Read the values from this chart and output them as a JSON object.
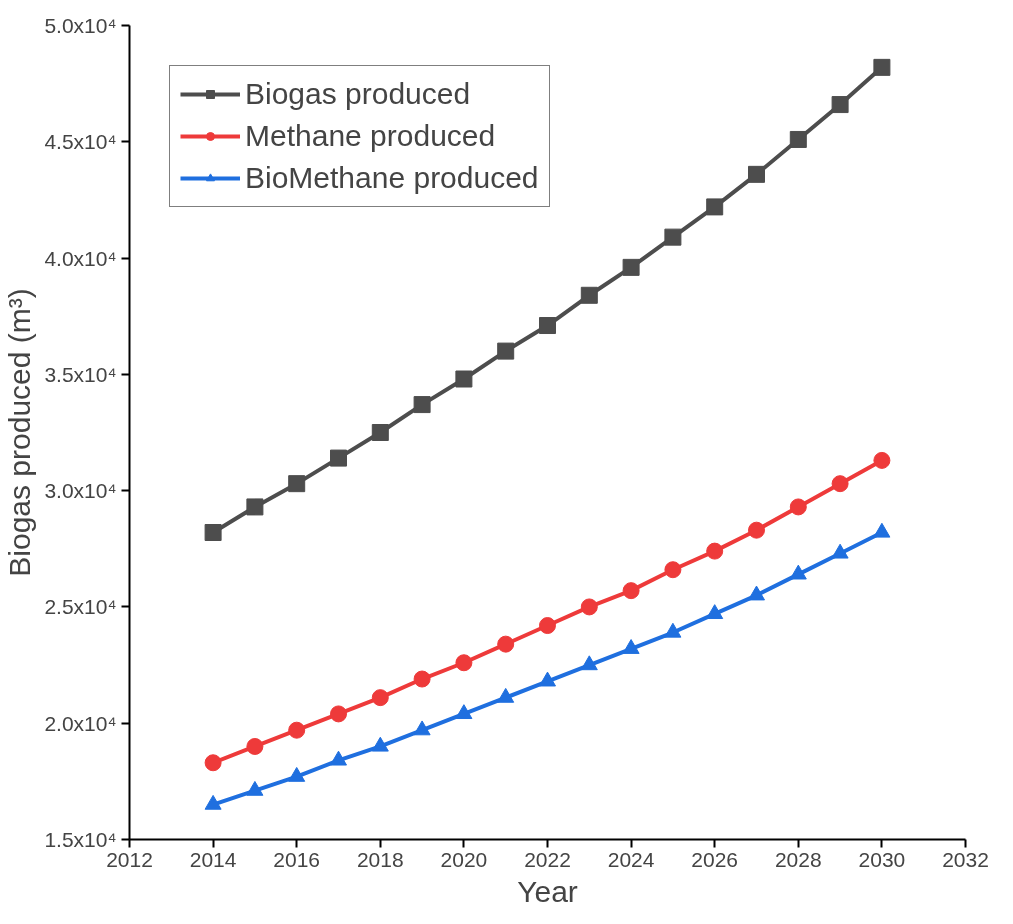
{
  "chart_data": {
    "type": "line",
    "xlabel": "Year",
    "ylabel": "Biogas produced (m³)",
    "x": [
      2014,
      2015,
      2016,
      2017,
      2018,
      2019,
      2020,
      2021,
      2022,
      2023,
      2024,
      2025,
      2026,
      2027,
      2028,
      2029,
      2030
    ],
    "xlim": [
      2012,
      2032
    ],
    "xticks": [
      2012,
      2014,
      2016,
      2018,
      2020,
      2022,
      2024,
      2026,
      2028,
      2030,
      2032
    ],
    "ylim": [
      15000,
      50000
    ],
    "yticks": [
      {
        "value": 15000,
        "label": "1.5x10⁴"
      },
      {
        "value": 20000,
        "label": "2.0x10⁴"
      },
      {
        "value": 25000,
        "label": "2.5x10⁴"
      },
      {
        "value": 30000,
        "label": "3.0x10⁴"
      },
      {
        "value": 35000,
        "label": "3.5x10⁴"
      },
      {
        "value": 40000,
        "label": "4.0x10⁴"
      },
      {
        "value": 45000,
        "label": "4.5x10⁴"
      },
      {
        "value": 50000,
        "label": "5.0x10⁴"
      }
    ],
    "grid": false,
    "legend": "top left",
    "line_style": "solid",
    "series": [
      {
        "name": "Biogas produced",
        "color": "#4d4d4d",
        "marker": "square",
        "values": [
          28200,
          29300,
          30300,
          31400,
          32500,
          33700,
          34800,
          36000,
          37100,
          38400,
          39600,
          40900,
          42200,
          43600,
          45100,
          46600,
          48200
        ]
      },
      {
        "name": "Methane produced",
        "color": "#ee3a3a",
        "marker": "circle",
        "values": [
          18300,
          19000,
          19700,
          20400,
          21100,
          21900,
          22600,
          23400,
          24200,
          25000,
          25700,
          26600,
          27400,
          28300,
          29300,
          30300,
          31300
        ]
      },
      {
        "name": "BioMethane produced",
        "color": "#1f6fdf",
        "marker": "triangle",
        "values": [
          16500,
          17100,
          17700,
          18400,
          19000,
          19700,
          20400,
          21100,
          21800,
          22500,
          23200,
          23900,
          24700,
          25500,
          26400,
          27300,
          28200
        ]
      }
    ]
  }
}
